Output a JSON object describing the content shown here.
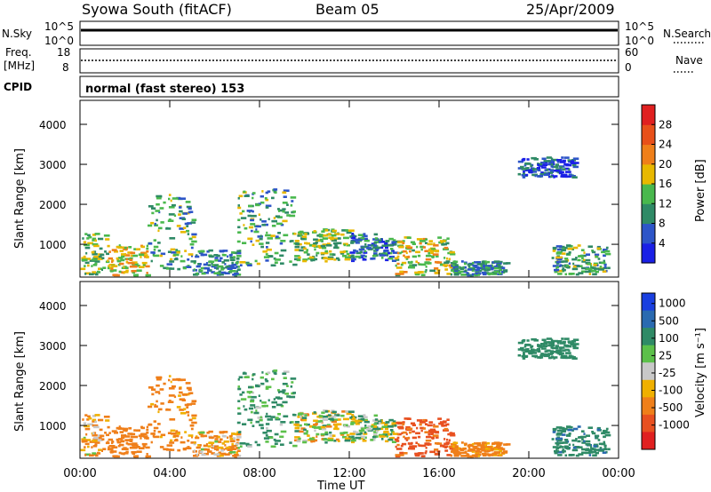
{
  "header": {
    "station": "Syowa South (fitACF)",
    "beam": "Beam 05",
    "date": "25/Apr/2009"
  },
  "noise_panel": {
    "left_label": "N.Sky",
    "right_label": "N.Search",
    "left_ticks": [
      "10^5",
      "10^0"
    ],
    "right_ticks": [
      "10^5",
      "10^0"
    ]
  },
  "freq_panel": {
    "left_label_line1": "Freq.",
    "left_label_line2": "[MHz]",
    "right_label": "Nave",
    "left_ticks": [
      "18",
      "8"
    ],
    "right_ticks": [
      "60",
      "0"
    ]
  },
  "cpid": {
    "label": "CPID",
    "text": "normal (fast stereo) 153"
  },
  "axes": {
    "ylabel": "Slant Range [km]",
    "xlabel": "Time UT",
    "y_ticks": [
      "1000",
      "2000",
      "3000",
      "4000"
    ],
    "x_ticks": [
      "00:00",
      "04:00",
      "08:00",
      "12:00",
      "16:00",
      "20:00",
      "00:00"
    ]
  },
  "colorbars": {
    "power": {
      "label": "Power [dB]",
      "ticks": [
        "4",
        "8",
        "12",
        "16",
        "20",
        "24",
        "28"
      ],
      "colors": [
        "#1a20e6",
        "#2d55c8",
        "#2f8a66",
        "#49b84d",
        "#e8b800",
        "#ef7f1a",
        "#e8501a",
        "#e02020"
      ]
    },
    "velocity": {
      "label": "Velocity [m s⁻¹]",
      "ticks": [
        "1000",
        "500",
        "100",
        "25",
        "-25",
        "-100",
        "-500",
        "-1000"
      ],
      "colors": [
        "#1a3fe0",
        "#2a6ab0",
        "#2f8a66",
        "#5cc04a",
        "#c8c8c8",
        "#f0b000",
        "#ef7f1a",
        "#e85020",
        "#e02020"
      ]
    }
  },
  "chart_data": [
    {
      "type": "heatmap",
      "title": "Power",
      "xlabel": "Time UT",
      "ylabel": "Slant Range [km]",
      "xlim": [
        0,
        24
      ],
      "ylim": [
        180,
        4600
      ],
      "clabel": "Power [dB]",
      "crange": [
        0,
        30
      ],
      "regions": [
        {
          "t": [
            0.0,
            1.2
          ],
          "r": [
            250,
            1300
          ],
          "c": 14
        },
        {
          "t": [
            1.2,
            3.0
          ],
          "r": [
            250,
            1000
          ],
          "c": 18
        },
        {
          "t": [
            3.0,
            5.0
          ],
          "r": [
            400,
            2300
          ],
          "c": 12
        },
        {
          "t": [
            5.0,
            7.0
          ],
          "r": [
            250,
            900
          ],
          "c": 10
        },
        {
          "t": [
            7.0,
            9.5
          ],
          "r": [
            500,
            2400
          ],
          "c": 12
        },
        {
          "t": [
            9.5,
            12.0
          ],
          "r": [
            600,
            1400
          ],
          "c": 14
        },
        {
          "t": [
            12.0,
            14.0
          ],
          "r": [
            600,
            1300
          ],
          "c": 8
        },
        {
          "t": [
            14.0,
            16.5
          ],
          "r": [
            250,
            1200
          ],
          "c": 16
        },
        {
          "t": [
            16.5,
            19.0
          ],
          "r": [
            250,
            600
          ],
          "c": 10
        },
        {
          "t": [
            19.5,
            22.0
          ],
          "r": [
            2700,
            3200
          ],
          "c": 6
        },
        {
          "t": [
            21.0,
            23.5
          ],
          "r": [
            250,
            1000
          ],
          "c": 12
        }
      ]
    },
    {
      "type": "heatmap",
      "title": "Velocity",
      "xlabel": "Time UT",
      "ylabel": "Slant Range [km]",
      "xlim": [
        0,
        24
      ],
      "ylim": [
        180,
        4600
      ],
      "clabel": "Velocity [m s⁻¹]",
      "crange": [
        -1000,
        1000
      ],
      "regions": [
        {
          "t": [
            0.0,
            1.2
          ],
          "r": [
            250,
            1300
          ],
          "c": -100
        },
        {
          "t": [
            1.2,
            3.0
          ],
          "r": [
            250,
            1000
          ],
          "c": -300
        },
        {
          "t": [
            3.0,
            5.0
          ],
          "r": [
            400,
            2300
          ],
          "c": -200
        },
        {
          "t": [
            5.0,
            7.0
          ],
          "r": [
            250,
            900
          ],
          "c": -100
        },
        {
          "t": [
            7.0,
            9.5
          ],
          "r": [
            500,
            2400
          ],
          "c": 150
        },
        {
          "t": [
            9.5,
            12.0
          ],
          "r": [
            600,
            1400
          ],
          "c": 0
        },
        {
          "t": [
            12.0,
            14.0
          ],
          "r": [
            600,
            1300
          ],
          "c": 50
        },
        {
          "t": [
            14.0,
            16.5
          ],
          "r": [
            250,
            1200
          ],
          "c": -600
        },
        {
          "t": [
            16.5,
            19.0
          ],
          "r": [
            250,
            600
          ],
          "c": -200
        },
        {
          "t": [
            19.5,
            22.0
          ],
          "r": [
            2700,
            3200
          ],
          "c": 300
        },
        {
          "t": [
            21.0,
            23.5
          ],
          "r": [
            250,
            1000
          ],
          "c": 400
        }
      ]
    }
  ]
}
